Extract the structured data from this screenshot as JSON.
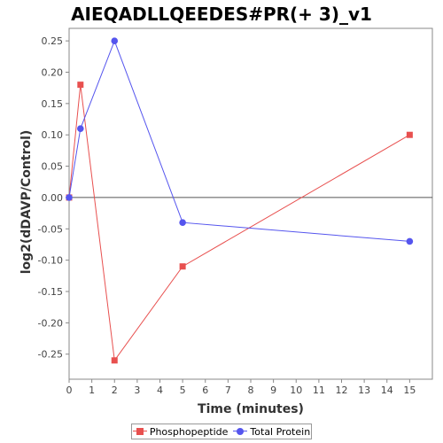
{
  "chart_data": {
    "type": "line",
    "title": "AIEQADLLQEEDES#PR(+ 3)_v1",
    "xlabel": "Time (minutes)",
    "ylabel": "log2(dDAVP/Control)",
    "xlim": [
      0,
      16
    ],
    "ylim": [
      -0.29,
      0.27
    ],
    "x_ticks": [
      0,
      1,
      2,
      3,
      4,
      5,
      6,
      7,
      8,
      9,
      10,
      11,
      12,
      13,
      14,
      15
    ],
    "y_ticks": [
      -0.25,
      -0.2,
      -0.15,
      -0.1,
      -0.05,
      0.0,
      0.05,
      0.1,
      0.15,
      0.2,
      0.25
    ],
    "y_tick_labels": [
      "-0.25",
      "-0.20",
      "-0.15",
      "-0.10",
      "-0.05",
      "0.00",
      "0.05",
      "0.10",
      "0.15",
      "0.20",
      "0.25"
    ],
    "grid": false,
    "zero_line": true,
    "legend_position": "bottom",
    "series": [
      {
        "name": "Phosphopeptide",
        "marker": "square",
        "color": "#e8504f",
        "x": [
          0,
          0.5,
          2,
          5,
          15
        ],
        "y": [
          0.0,
          0.18,
          -0.26,
          -0.11,
          0.1
        ]
      },
      {
        "name": "Total Protein",
        "marker": "circle",
        "color": "#5555ee",
        "x": [
          0,
          0.5,
          2,
          5,
          15
        ],
        "y": [
          0.0,
          0.11,
          0.25,
          -0.04,
          -0.07
        ]
      }
    ]
  }
}
